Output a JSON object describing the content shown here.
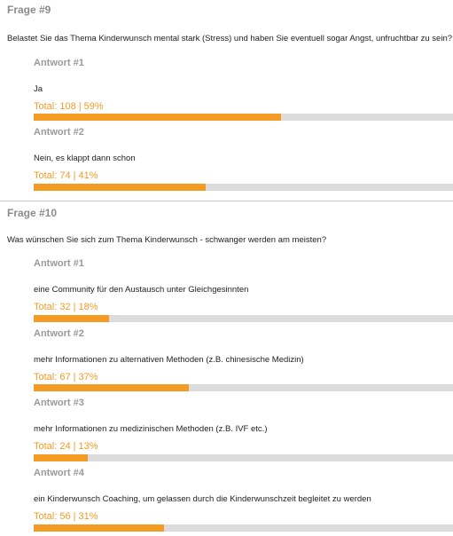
{
  "questions": [
    {
      "label": "Frage #9",
      "text": "Belastet Sie das Thema Kinderwunsch mental stark (Stress) und haben Sie eventuell sogar Angst, unfruchtbar zu sein?",
      "answers": [
        {
          "label": "Antwort #1",
          "text": "Ja",
          "total": "Total: 108 | 59%",
          "percent": 59
        },
        {
          "label": "Antwort #2",
          "text": "Nein, es klappt dann schon",
          "total": "Total: 74 | 41%",
          "percent": 41
        }
      ]
    },
    {
      "label": "Frage #10",
      "text": "Was wünschen Sie sich zum Thema Kinderwunsch - schwanger werden am meisten?",
      "answers": [
        {
          "label": "Antwort #1",
          "text": "eine Community für den Austausch unter Gleichgesinnten",
          "total": "Total: 32 | 18%",
          "percent": 18
        },
        {
          "label": "Antwort #2",
          "text": "mehr Informationen zu alternativen Methoden (z.B. chinesische Medizin)",
          "total": "Total: 67 | 37%",
          "percent": 37
        },
        {
          "label": "Antwort #3",
          "text": "mehr Informationen zu medizinischen Methoden (z.B. IVF etc.)",
          "total": "Total: 24 | 13%",
          "percent": 13
        },
        {
          "label": "Antwort #4",
          "text": "ein Kinderwunsch Coaching, um gelassen durch die Kinderwunschzeit begleitet zu werden",
          "total": "Total: 56 | 31%",
          "percent": 31
        }
      ]
    }
  ],
  "colors": {
    "accent": "#f49b23",
    "track": "#dcdcdc"
  }
}
